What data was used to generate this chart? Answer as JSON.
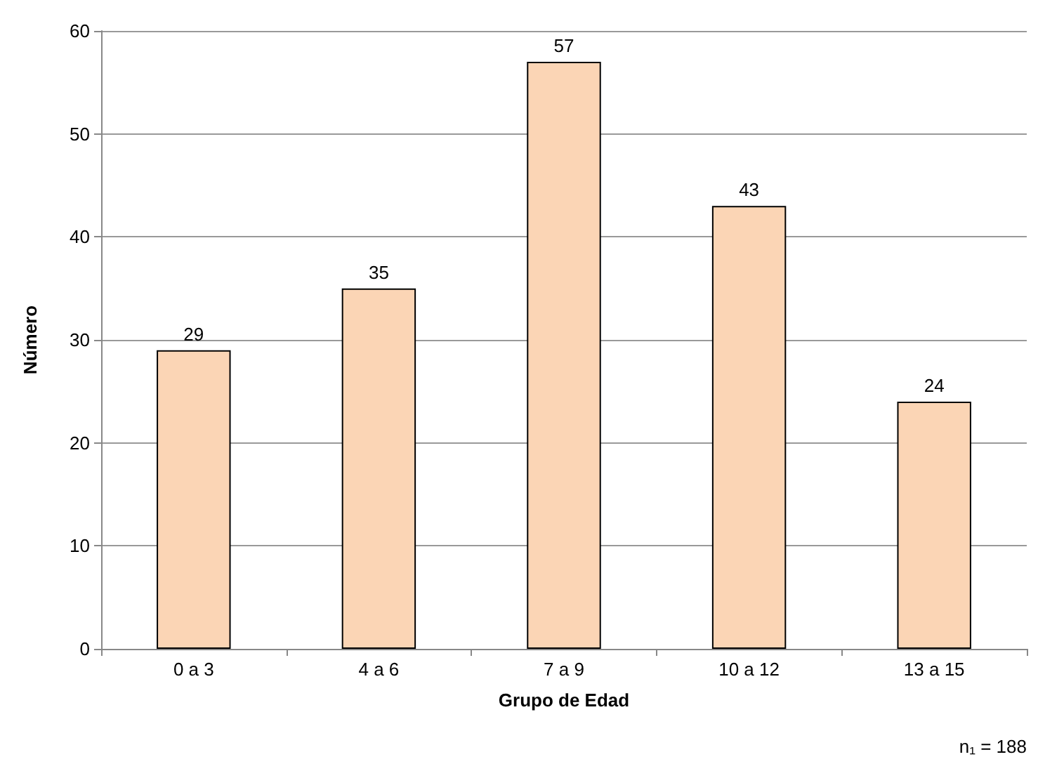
{
  "chart_data": {
    "type": "bar",
    "xlabel": "Grupo de Edad",
    "ylabel": "Número",
    "categories": [
      "0 a 3",
      "4 a 6",
      "7 a 9",
      "10 a 12",
      "13 a 15"
    ],
    "values": [
      29,
      35,
      57,
      43,
      24
    ],
    "color": "#fbd5b5",
    "ylim": [
      0,
      60
    ],
    "yticks": [
      0,
      10,
      20,
      30,
      40,
      50,
      60
    ],
    "grid": "y",
    "data_labels": true,
    "annotations": [
      "n₁ = 188"
    ]
  }
}
